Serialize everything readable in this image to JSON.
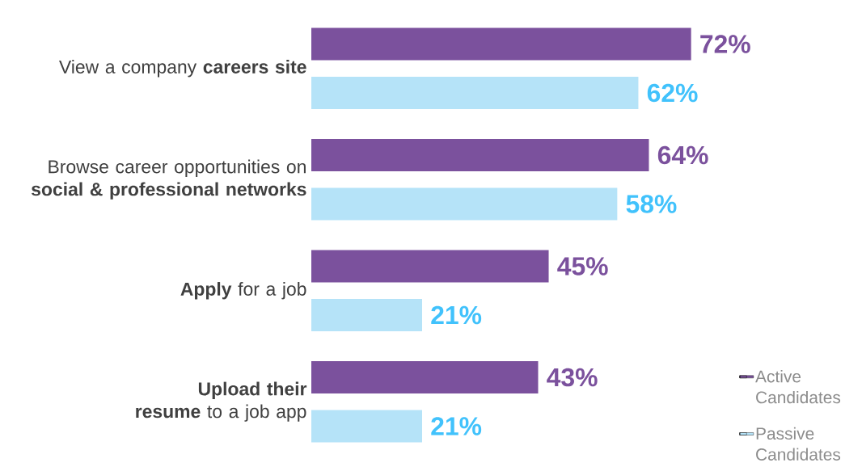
{
  "chart_data": {
    "type": "bar",
    "orientation": "horizontal",
    "categories": [
      "View a company **careers site**",
      "Browse career opportunities on **social & professional networks**",
      "**Apply** for a job",
      "**Upload their resume** to a job app"
    ],
    "series": [
      {
        "name": "Active Candidates",
        "color": "#7b519d",
        "values": [
          72,
          64,
          45,
          43
        ],
        "value_labels": [
          "72%",
          "64%",
          "45%",
          "43%"
        ]
      },
      {
        "name": "Passive Candidates",
        "color": "#b5e3f8",
        "values": [
          62,
          58,
          21,
          21
        ],
        "value_labels": [
          "62%",
          "58%",
          "21%",
          "21%"
        ]
      }
    ],
    "legend": "bottom right"
  }
}
